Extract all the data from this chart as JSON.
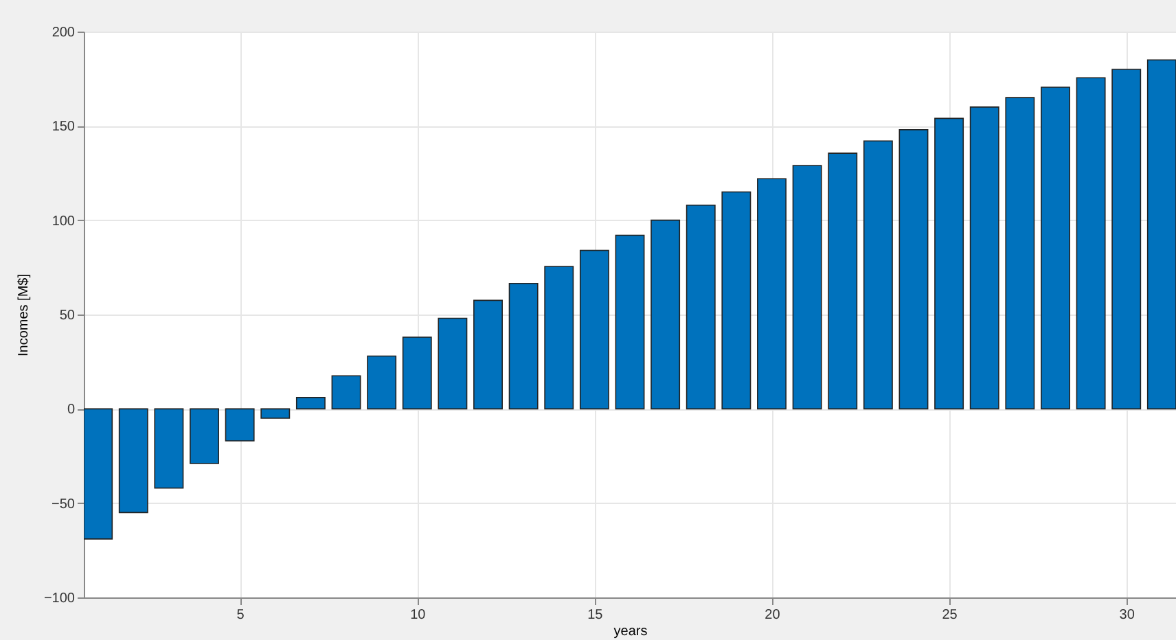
{
  "chart_data": {
    "type": "bar",
    "xlabel": "years",
    "ylabel": "Incomes [M$]",
    "x": [
      1,
      2,
      3,
      4,
      5,
      6,
      7,
      8,
      9,
      10,
      11,
      12,
      13,
      14,
      15,
      16,
      17,
      18,
      19,
      20,
      21,
      22,
      23,
      24,
      25,
      26,
      27,
      28,
      29,
      30,
      31
    ],
    "values": [
      -69,
      -55,
      -42,
      -29,
      -17,
      -5,
      6,
      17.5,
      28,
      38,
      48,
      57.5,
      66.5,
      75.5,
      84,
      92,
      100,
      108,
      115,
      122,
      129,
      135.5,
      142,
      148,
      154,
      160,
      165,
      170.5,
      175.5,
      180,
      185
    ],
    "color": "#0072bd",
    "xlim": [
      0.6,
      31.4
    ],
    "xticks": [
      5,
      10,
      15,
      20,
      25,
      30
    ],
    "ylim": [
      -100,
      200
    ],
    "yticks": [
      -100,
      -50,
      0,
      50,
      100,
      150,
      200
    ],
    "grid": true
  }
}
